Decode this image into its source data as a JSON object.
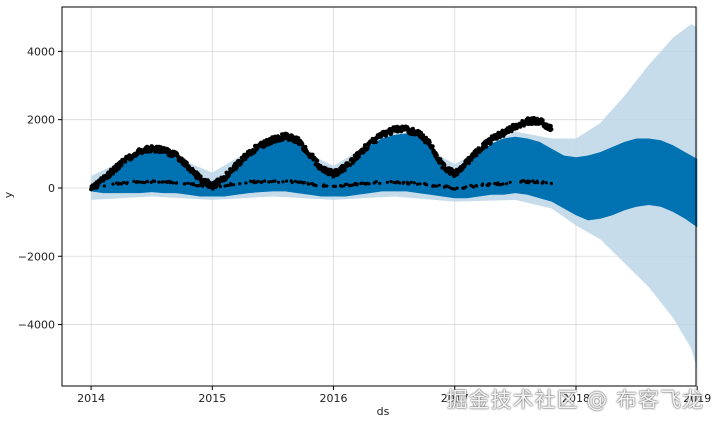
{
  "chart_data": {
    "type": "line",
    "title": "",
    "xlabel": "ds",
    "ylabel": "y",
    "xlim": [
      2013.76,
      2018.99
    ],
    "ylim": [
      -5800,
      5300
    ],
    "x_ticks": [
      2014,
      2015,
      2016,
      2017,
      2018,
      2019
    ],
    "x_tick_labels": [
      "2014",
      "2015",
      "2016",
      "2017",
      "2018",
      "2019"
    ],
    "y_ticks": [
      -4000,
      -2000,
      0,
      2000,
      4000
    ],
    "y_tick_labels": [
      "−4000",
      "−2000",
      "0",
      "2000",
      "4000"
    ],
    "grid": true,
    "colors": {
      "observed": "#000000",
      "forecast": "#0072B2",
      "interval": "#bcd6e8",
      "grid": "#d9d9d9"
    },
    "series": [
      {
        "kind": "observed-scatter",
        "x": [
          2014.0,
          2014.1,
          2014.2,
          2014.3,
          2014.4,
          2014.5,
          2014.6,
          2014.7,
          2014.8,
          2014.9,
          2015.0,
          2015.1,
          2015.2,
          2015.3,
          2015.4,
          2015.5,
          2015.6,
          2015.7,
          2015.8,
          2015.9,
          2016.0,
          2016.1,
          2016.2,
          2016.3,
          2016.4,
          2016.5,
          2016.6,
          2016.7,
          2016.8,
          2016.9,
          2017.0,
          2017.1,
          2017.2,
          2017.3,
          2017.4,
          2017.5,
          2017.6,
          2017.7,
          2017.8
        ],
        "upper": [
          50,
          350,
          650,
          950,
          1150,
          1250,
          1200,
          1050,
          700,
          350,
          150,
          400,
          750,
          1100,
          1350,
          1500,
          1600,
          1500,
          1100,
          650,
          500,
          700,
          1050,
          1400,
          1650,
          1800,
          1800,
          1700,
          1350,
          750,
          500,
          850,
          1200,
          1500,
          1700,
          1900,
          2050,
          2050,
          1800
        ],
        "lower": [
          0,
          50,
          100,
          120,
          150,
          150,
          150,
          130,
          80,
          50,
          0,
          50,
          100,
          150,
          150,
          150,
          150,
          150,
          80,
          50,
          0,
          50,
          80,
          120,
          130,
          150,
          120,
          100,
          50,
          20,
          -50,
          0,
          50,
          80,
          100,
          150,
          150,
          150,
          100
        ]
      },
      {
        "kind": "forecast-band",
        "x": [
          2014.0,
          2014.1,
          2014.2,
          2014.3,
          2014.4,
          2014.5,
          2014.6,
          2014.7,
          2014.8,
          2014.9,
          2015.0,
          2015.1,
          2015.2,
          2015.3,
          2015.4,
          2015.5,
          2015.6,
          2015.7,
          2015.8,
          2015.9,
          2016.0,
          2016.1,
          2016.2,
          2016.3,
          2016.4,
          2016.5,
          2016.6,
          2016.7,
          2016.8,
          2016.9,
          2017.0,
          2017.1,
          2017.2,
          2017.3,
          2017.4,
          2017.5,
          2017.6,
          2017.7,
          2017.8,
          2017.9,
          2018.0,
          2018.1,
          2018.2,
          2018.3,
          2018.4,
          2018.5,
          2018.6,
          2018.7,
          2018.8,
          2018.9,
          2019.0
        ],
        "upper": [
          100,
          350,
          650,
          900,
          1000,
          1100,
          1050,
          900,
          550,
          300,
          200,
          350,
          650,
          950,
          1200,
          1350,
          1450,
          1400,
          1000,
          600,
          450,
          600,
          900,
          1250,
          1450,
          1550,
          1600,
          1500,
          1200,
          700,
          450,
          700,
          1000,
          1300,
          1450,
          1500,
          1450,
          1350,
          1150,
          950,
          900,
          950,
          1050,
          1200,
          1350,
          1450,
          1450,
          1400,
          1250,
          1050,
          850
        ],
        "lower": [
          -100,
          -150,
          -150,
          -150,
          -150,
          -120,
          -150,
          -150,
          -200,
          -250,
          -250,
          -250,
          -200,
          -150,
          -120,
          -100,
          -100,
          -150,
          -200,
          -250,
          -250,
          -250,
          -200,
          -150,
          -100,
          -100,
          -100,
          -150,
          -200,
          -250,
          -300,
          -300,
          -250,
          -200,
          -200,
          -150,
          -200,
          -300,
          -400,
          -600,
          -800,
          -950,
          -900,
          -800,
          -650,
          -550,
          -500,
          -550,
          -700,
          -900,
          -1150
        ]
      },
      {
        "kind": "uncertainty-interval",
        "x": [
          2014.0,
          2014.5,
          2015.0,
          2015.5,
          2016.0,
          2016.5,
          2017.0,
          2017.5,
          2017.8,
          2018.0,
          2018.2,
          2018.4,
          2018.6,
          2018.8,
          2018.95,
          2019.0
        ],
        "upper": [
          350,
          1200,
          450,
          1500,
          650,
          1700,
          700,
          1650,
          1450,
          1450,
          1900,
          2700,
          3600,
          4400,
          4800,
          4700
        ],
        "lower": [
          -350,
          -250,
          -350,
          -250,
          -350,
          -250,
          -400,
          -350,
          -600,
          -1100,
          -1500,
          -2200,
          -2900,
          -3800,
          -4700,
          -5300
        ]
      }
    ]
  },
  "watermark": "掘金技术社区 @ 布客飞龙"
}
